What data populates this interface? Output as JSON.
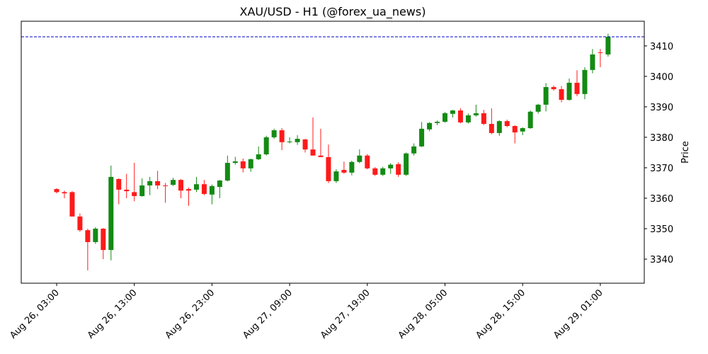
{
  "chart_data": {
    "type": "candlestick",
    "title": "XAU/USD - H1 (@forex_ua_news)",
    "ylabel": "Price",
    "x": [
      "Aug 26, 03:00",
      "Aug 26, 04:00",
      "Aug 26, 05:00",
      "Aug 26, 06:00",
      "Aug 26, 07:00",
      "Aug 26, 08:00",
      "Aug 26, 09:00",
      "Aug 26, 10:00",
      "Aug 26, 11:00",
      "Aug 26, 12:00",
      "Aug 26, 13:00",
      "Aug 26, 14:00",
      "Aug 26, 15:00",
      "Aug 26, 16:00",
      "Aug 26, 17:00",
      "Aug 26, 18:00",
      "Aug 26, 19:00",
      "Aug 26, 20:00",
      "Aug 26, 21:00",
      "Aug 26, 22:00",
      "Aug 26, 23:00",
      "Aug 27, 00:00",
      "Aug 27, 01:00",
      "Aug 27, 02:00",
      "Aug 27, 03:00",
      "Aug 27, 04:00",
      "Aug 27, 05:00",
      "Aug 27, 06:00",
      "Aug 27, 07:00",
      "Aug 27, 08:00",
      "Aug 27, 09:00",
      "Aug 27, 10:00",
      "Aug 27, 11:00",
      "Aug 27, 12:00",
      "Aug 27, 13:00",
      "Aug 27, 14:00",
      "Aug 27, 15:00",
      "Aug 27, 16:00",
      "Aug 27, 17:00",
      "Aug 27, 18:00",
      "Aug 27, 19:00",
      "Aug 27, 20:00",
      "Aug 27, 21:00",
      "Aug 27, 22:00",
      "Aug 27, 23:00",
      "Aug 28, 00:00",
      "Aug 28, 01:00",
      "Aug 28, 02:00",
      "Aug 28, 03:00",
      "Aug 28, 04:00",
      "Aug 28, 05:00",
      "Aug 28, 06:00",
      "Aug 28, 07:00",
      "Aug 28, 08:00",
      "Aug 28, 09:00",
      "Aug 28, 10:00",
      "Aug 28, 11:00",
      "Aug 28, 12:00",
      "Aug 28, 13:00",
      "Aug 28, 14:00",
      "Aug 28, 15:00",
      "Aug 28, 16:00",
      "Aug 28, 17:00",
      "Aug 28, 18:00",
      "Aug 28, 19:00",
      "Aug 28, 20:00",
      "Aug 28, 21:00",
      "Aug 28, 22:00",
      "Aug 28, 23:00",
      "Aug 29, 00:00",
      "Aug 29, 01:00",
      "Aug 29, 02:00"
    ],
    "open": [
      3363,
      3362,
      3362,
      3354,
      3349.5,
      3345.6,
      3350,
      3343,
      3366.3,
      3362.8,
      3362,
      3360.7,
      3364.2,
      3365.6,
      3364.2,
      3364.4,
      3366,
      3363,
      3362.8,
      3364.6,
      3361.2,
      3363.7,
      3365.8,
      3371.6,
      3372.1,
      3369.8,
      3372.8,
      3374.4,
      3380,
      3382.3,
      3378.4,
      3378.4,
      3379.3,
      3376,
      3374,
      3373.5,
      3365.6,
      3369.3,
      3368.4,
      3371.9,
      3374,
      3369.8,
      3367.7,
      3369.8,
      3371.2,
      3367.7,
      3374.7,
      3377,
      3382.6,
      3384.7,
      3385.1,
      3387.7,
      3388.8,
      3384.9,
      3387.2,
      3387.9,
      3384.4,
      3381.4,
      3385.3,
      3383.7,
      3381.9,
      3383,
      3388.4,
      3390.7,
      3396.5,
      3395.8,
      3392.3,
      3397.9,
      3394.2,
      3402.1,
      3407.9,
      3407.2
    ],
    "high": [
      3363.3,
      3362.5,
      3362.3,
      3355,
      3350,
      3350.5,
      3350.2,
      3370.7,
      3366.5,
      3368,
      3371.6,
      3366.5,
      3367,
      3369,
      3365,
      3366.7,
      3366.3,
      3363.5,
      3367,
      3366,
      3364.5,
      3366,
      3374,
      3373.6,
      3373,
      3373,
      3377,
      3380.5,
      3382.8,
      3383,
      3380,
      3380.7,
      3379.5,
      3386.5,
      3382.8,
      3377.6,
      3369.5,
      3372,
      3372.3,
      3376,
      3374.5,
      3370.2,
      3370.3,
      3371.5,
      3371.8,
      3375,
      3378,
      3385,
      3385,
      3385.5,
      3388.3,
      3389,
      3389.5,
      3387.8,
      3390.7,
      3389,
      3389.5,
      3385.6,
      3385.8,
      3384,
      3383.3,
      3388.8,
      3391,
      3397.8,
      3397,
      3396.8,
      3399.3,
      3402,
      3403,
      3409,
      3409,
      3414
    ],
    "low": [
      3361.6,
      3360,
      3354,
      3349,
      3336.3,
      3345,
      3340,
      3339.6,
      3358,
      3360,
      3359,
      3360.5,
      3361,
      3363,
      3358.5,
      3364,
      3360,
      3357.5,
      3362,
      3361,
      3358,
      3360,
      3365.5,
      3371,
      3368.5,
      3368.7,
      3372.5,
      3374,
      3379.5,
      3375.8,
      3378,
      3377.5,
      3375,
      3374,
      3373.5,
      3365,
      3365,
      3368,
      3367.5,
      3371.5,
      3369.5,
      3367.3,
      3367.3,
      3368,
      3367,
      3367.3,
      3374,
      3376.8,
      3382,
      3384,
      3384.8,
      3386.5,
      3384.6,
      3384.5,
      3386.8,
      3384,
      3381,
      3380.5,
      3383.3,
      3378,
      3380.7,
      3382.8,
      3387.8,
      3388.5,
      3395.3,
      3391.5,
      3392,
      3393.5,
      3392.5,
      3401,
      3403,
      3406.5
    ],
    "close": [
      3362,
      3361.6,
      3354,
      3349.5,
      3345.6,
      3350,
      3343,
      3367,
      3362.8,
      3362.3,
      3360.7,
      3364.2,
      3365.6,
      3364.2,
      3364,
      3366,
      3362.5,
      3362.5,
      3364.6,
      3361.4,
      3364,
      3365.8,
      3371.6,
      3372.1,
      3369.8,
      3372.8,
      3374.4,
      3380,
      3382.3,
      3378.4,
      3378.6,
      3379.5,
      3376,
      3374,
      3373.5,
      3365.6,
      3368.8,
      3368.4,
      3371.9,
      3374,
      3369.8,
      3367.7,
      3369.8,
      3371,
      3367.7,
      3374.7,
      3377,
      3382.8,
      3384.7,
      3385.1,
      3387.9,
      3388.8,
      3384.9,
      3387.2,
      3387.9,
      3384.4,
      3381.4,
      3385.3,
      3383.7,
      3381.6,
      3383,
      3388.4,
      3390.7,
      3396.5,
      3395.8,
      3392.3,
      3397.9,
      3394.2,
      3402.1,
      3407.2,
      3407.7,
      3413
    ],
    "up_color": "#138a13",
    "down_color": "#ff1a1a",
    "hline": 3413,
    "hline_color": "#0000cc",
    "ylim": [
      3332.1,
      3418.1
    ],
    "yticks": [
      3340,
      3350,
      3360,
      3370,
      3380,
      3390,
      3400,
      3410
    ]
  }
}
